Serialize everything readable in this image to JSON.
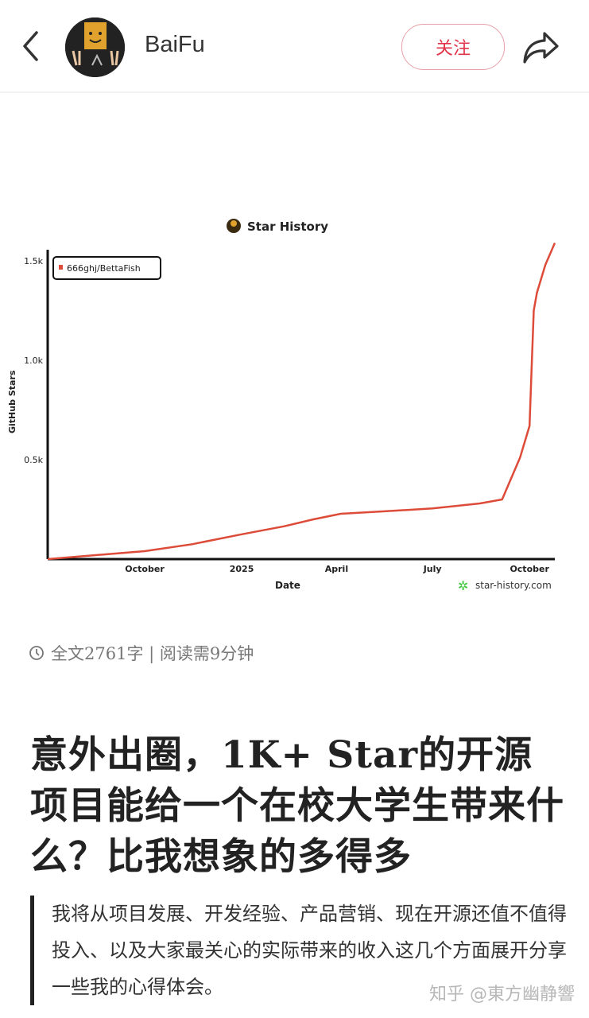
{
  "header": {
    "username": "BaiFu",
    "follow_label": "关注",
    "back_icon": "chevron-left-icon",
    "share_icon": "share-arrow-icon"
  },
  "chart_data": {
    "type": "line",
    "title": "Star History",
    "xlabel": "Date",
    "ylabel": "GitHub Stars",
    "x_tick_labels": [
      "October",
      "2025",
      "April",
      "July",
      "October"
    ],
    "y_tick_labels": [
      "0.5k",
      "1.0k",
      "1.5k"
    ],
    "y_ticks": [
      500,
      1000,
      1500
    ],
    "ylim": [
      0,
      1600
    ],
    "xlim": [
      "2024-07-01",
      "2025-10-25"
    ],
    "grid": false,
    "legend_position": "top-left",
    "watermark": "star-history.com",
    "series": [
      {
        "name": "666ghj/BettaFish",
        "color": "#dd4b39",
        "x": [
          "2024-07-01",
          "2024-10-01",
          "2024-11-15",
          "2025-01-01",
          "2025-02-10",
          "2025-03-10",
          "2025-04-05",
          "2025-05-15",
          "2025-07-01",
          "2025-08-15",
          "2025-09-05",
          "2025-09-22",
          "2025-10-01",
          "2025-10-03",
          "2025-10-05",
          "2025-10-08",
          "2025-10-16",
          "2025-10-25"
        ],
        "y": [
          0,
          40,
          75,
          125,
          165,
          200,
          228,
          240,
          255,
          280,
          300,
          510,
          670,
          960,
          1250,
          1340,
          1480,
          1590
        ]
      }
    ]
  },
  "article": {
    "meta": "全文2761字 | 阅读需9分钟",
    "clock_icon": "clock-icon",
    "title": "意外出圈，1K+ Star的开源项目能给一个在校大学生带来什么？比我想象的多得多",
    "summary": "我将从项目发展、开发经验、产品营销、现在开源还值不值得投入、以及大家最关心的实际带来的收入这几个方面展开分享一些我的心得体会。",
    "watermark": "知乎 @東方幽静響"
  }
}
